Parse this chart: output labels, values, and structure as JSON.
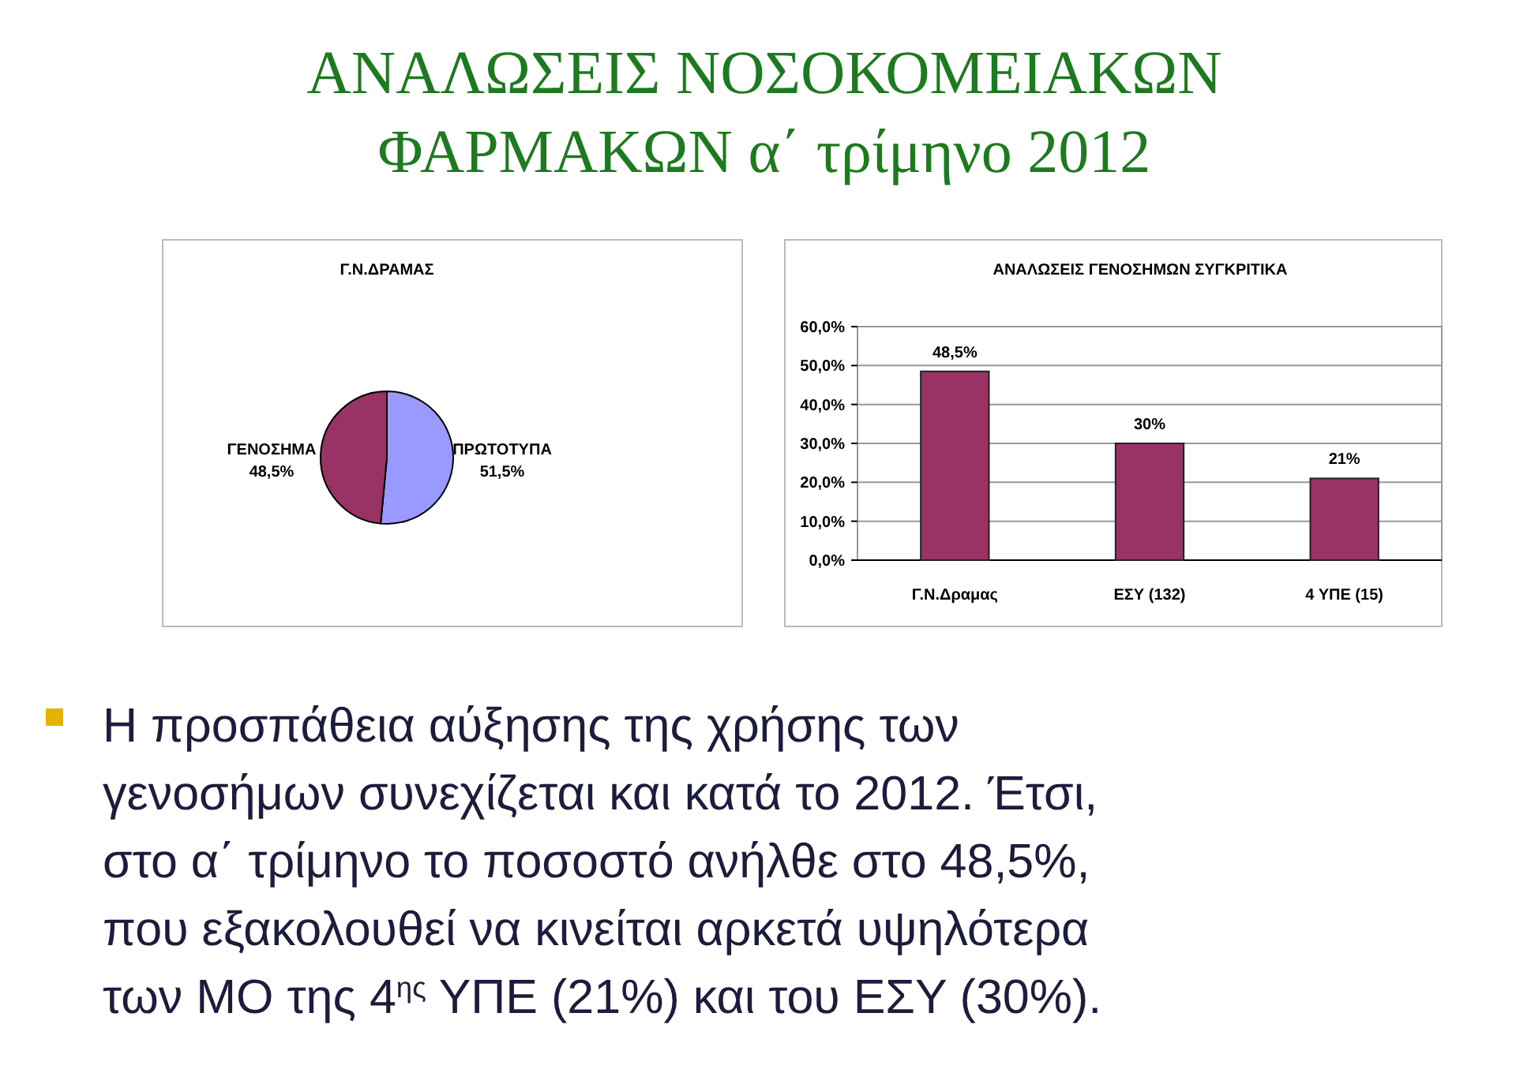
{
  "chart_data": [
    {
      "type": "other",
      "title": "ΑΝΑΛΩΣΕΙΣ ΝΟΣΟΚΟΜΕΙΑΚΩΝ\nΦΑΡΜΑΚΩΝ α΄ τρίμηνο 2012"
    },
    {
      "type": "pie",
      "title": "Γ.Ν.ΔΡΑΜΑΣ",
      "categories": [
        "ΠΡΩΤΟΤΥΠΑ",
        "ΓΕΝΟΣΗΜΑ"
      ],
      "values": [
        51.5,
        48.5
      ],
      "colors": [
        "#9999ff",
        "#993366"
      ],
      "value_labels": [
        "51,5%",
        "48,5%"
      ]
    },
    {
      "type": "bar",
      "title": "ΑΝΑΛΩΣΕΙΣ ΓΕΝΟΣΗΜΩΝ ΣΥΓΚΡΙΤΙΚΑ",
      "categories": [
        "Γ.Ν.Δραμας",
        "ΕΣΥ (132)",
        "4 ΥΠΕ (15)"
      ],
      "values": [
        48.5,
        30,
        21
      ],
      "color": "#993366",
      "value_labels": [
        "48,5%",
        "30%",
        "21%"
      ],
      "ylim": [
        0,
        60
      ],
      "yticks": [
        {
          "value": 0,
          "label": "0,0%"
        },
        {
          "value": 10,
          "label": "10,0%"
        },
        {
          "value": 20,
          "label": "20,0%"
        },
        {
          "value": 30,
          "label": "30,0%"
        },
        {
          "value": 40,
          "label": "40,0%"
        },
        {
          "value": 50,
          "label": "50,0%"
        },
        {
          "value": 60,
          "label": "60,0%"
        }
      ],
      "grid": "y"
    },
    {
      "type": "other",
      "annotations": [
        "Η προσπάθεια αύξησης της χρήσης των",
        "γενοσήμων συνεχίζεται και κατά το 2012. Έτσι,",
        "στο α΄ τρίμηνο το ποσοστό ανήλθε στο 48,5%,",
        "που εξακολουθεί να κινείται αρκετά υψηλότερα",
        "των ΜΟ της 4$^{ης}$ ΥΠΕ (21%) και του ΕΣΥ (30%)."
      ]
    }
  ]
}
